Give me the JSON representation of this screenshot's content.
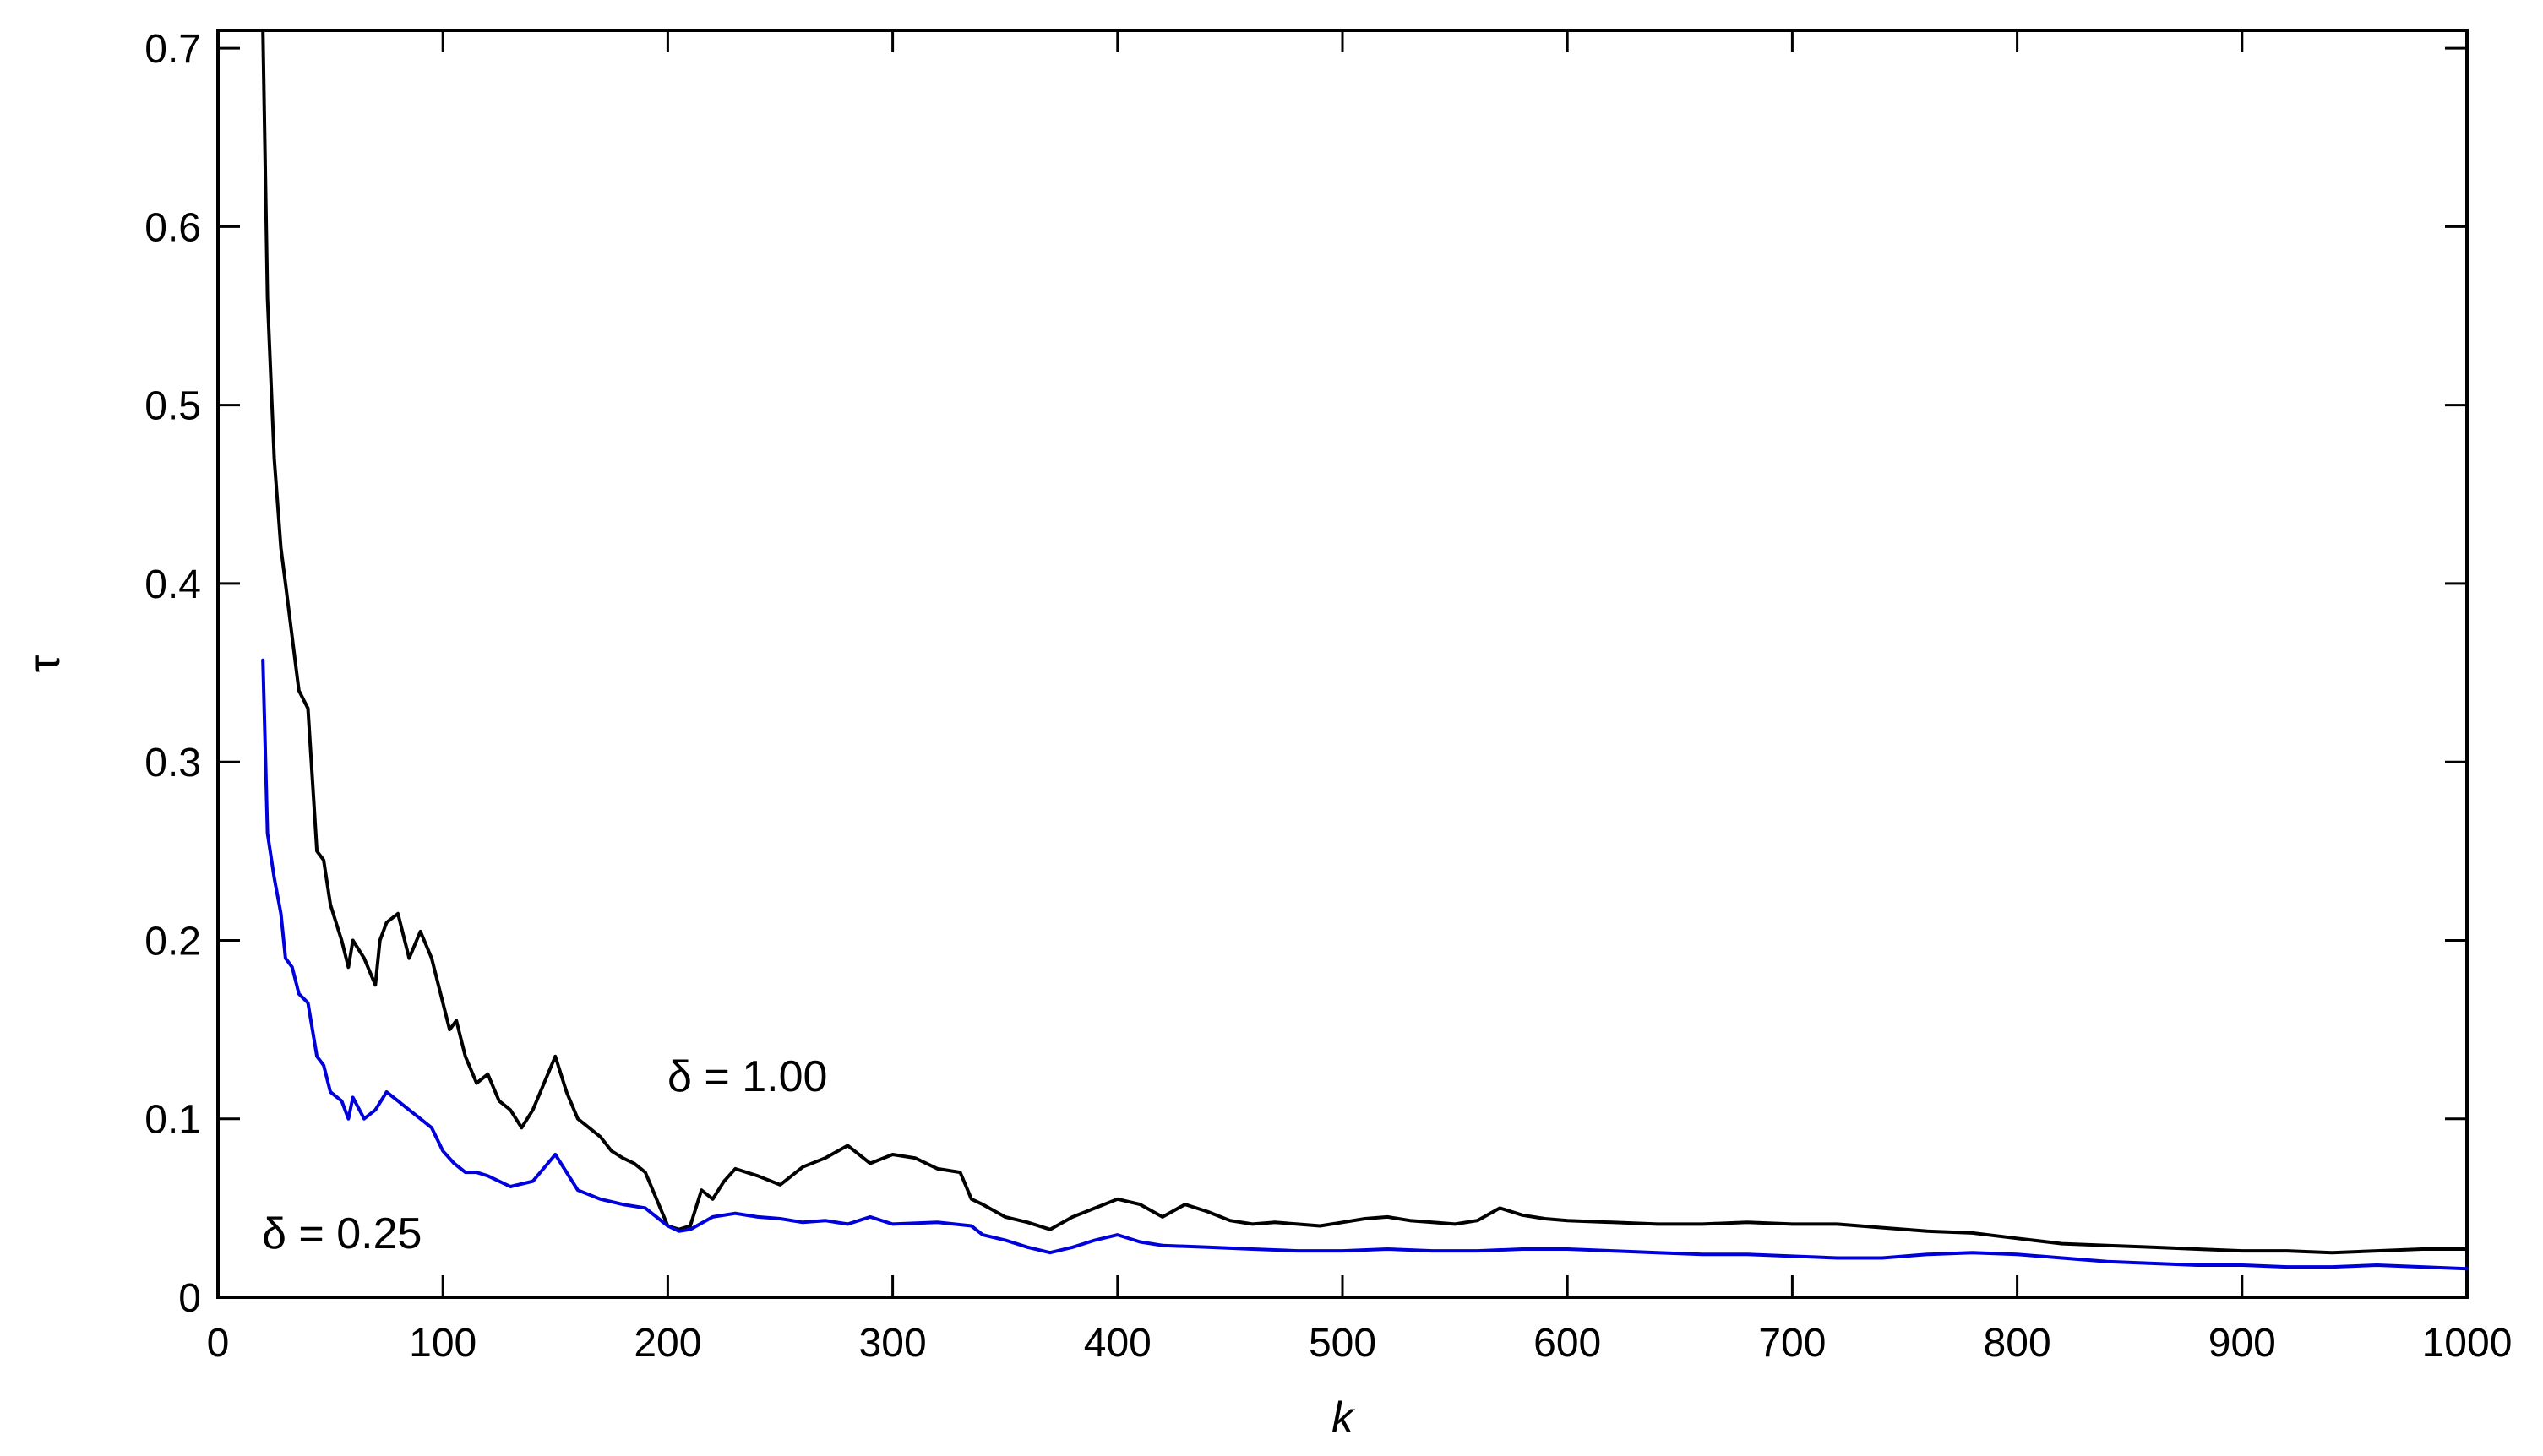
{
  "chart_data": {
    "type": "line",
    "title": "",
    "xlabel": "k",
    "ylabel": "τ",
    "xlim": [
      0,
      1000
    ],
    "ylim": [
      0,
      0.71
    ],
    "grid": false,
    "x_ticks": [
      0,
      100,
      200,
      300,
      400,
      500,
      600,
      700,
      800,
      900,
      1000
    ],
    "x_tick_labels": [
      "0",
      "100",
      "200",
      "300",
      "400",
      "500",
      "600",
      "700",
      "800",
      "900",
      "1000"
    ],
    "y_ticks": [
      0,
      0.1,
      0.2,
      0.3,
      0.4,
      0.5,
      0.6,
      0.7
    ],
    "y_tick_labels": [
      "0",
      "0.1",
      "0.2",
      "0.3",
      "0.4",
      "0.5",
      "0.6",
      "0.7"
    ],
    "annotations": [
      {
        "text": "δ = 1.00",
        "x": 200,
        "y": 0.12
      },
      {
        "text": "δ = 0.25",
        "x": 20,
        "y": 0.031
      }
    ],
    "series": [
      {
        "color": "#000000",
        "x": [
          20,
          22,
          25,
          28,
          30,
          33,
          36,
          40,
          44,
          47,
          50,
          55,
          58,
          60,
          65,
          70,
          72,
          75,
          80,
          85,
          90,
          95,
          100,
          103,
          106,
          110,
          115,
          120,
          125,
          130,
          135,
          140,
          145,
          150,
          155,
          160,
          165,
          170,
          175,
          180,
          185,
          190,
          195,
          200,
          205,
          210,
          215,
          220,
          225,
          230,
          240,
          250,
          260,
          270,
          280,
          290,
          300,
          310,
          320,
          330,
          335,
          340,
          350,
          360,
          370,
          380,
          390,
          400,
          410,
          420,
          430,
          440,
          450,
          460,
          470,
          480,
          490,
          500,
          510,
          520,
          530,
          540,
          550,
          560,
          570,
          580,
          590,
          600,
          620,
          640,
          660,
          680,
          700,
          720,
          740,
          760,
          780,
          800,
          820,
          840,
          860,
          880,
          900,
          920,
          940,
          960,
          980,
          1000
        ],
        "y": [
          0.71,
          0.56,
          0.47,
          0.42,
          0.4,
          0.37,
          0.34,
          0.33,
          0.25,
          0.245,
          0.22,
          0.2,
          0.185,
          0.2,
          0.19,
          0.175,
          0.2,
          0.21,
          0.215,
          0.19,
          0.205,
          0.19,
          0.165,
          0.15,
          0.155,
          0.135,
          0.12,
          0.125,
          0.11,
          0.105,
          0.095,
          0.105,
          0.12,
          0.135,
          0.115,
          0.1,
          0.095,
          0.09,
          0.082,
          0.078,
          0.075,
          0.07,
          0.055,
          0.04,
          0.038,
          0.04,
          0.06,
          0.055,
          0.065,
          0.072,
          0.068,
          0.063,
          0.073,
          0.078,
          0.085,
          0.075,
          0.08,
          0.078,
          0.072,
          0.07,
          0.055,
          0.052,
          0.045,
          0.042,
          0.038,
          0.045,
          0.05,
          0.055,
          0.052,
          0.045,
          0.052,
          0.048,
          0.043,
          0.041,
          0.042,
          0.041,
          0.04,
          0.042,
          0.044,
          0.045,
          0.043,
          0.042,
          0.041,
          0.043,
          0.05,
          0.046,
          0.044,
          0.043,
          0.042,
          0.041,
          0.041,
          0.042,
          0.041,
          0.041,
          0.039,
          0.037,
          0.036,
          0.033,
          0.03,
          0.029,
          0.028,
          0.027,
          0.026,
          0.026,
          0.025,
          0.026,
          0.027,
          0.027
        ]
      },
      {
        "color": "#0000dd",
        "x": [
          20,
          22,
          25,
          28,
          30,
          33,
          36,
          40,
          44,
          47,
          50,
          55,
          58,
          60,
          65,
          70,
          75,
          80,
          85,
          90,
          95,
          100,
          105,
          110,
          115,
          120,
          130,
          140,
          150,
          155,
          160,
          170,
          180,
          190,
          200,
          205,
          210,
          220,
          230,
          240,
          250,
          260,
          270,
          280,
          290,
          300,
          320,
          335,
          340,
          350,
          360,
          370,
          380,
          390,
          400,
          410,
          420,
          440,
          460,
          480,
          500,
          520,
          540,
          560,
          580,
          600,
          620,
          640,
          660,
          680,
          700,
          720,
          740,
          760,
          780,
          800,
          820,
          840,
          860,
          880,
          900,
          920,
          940,
          960,
          980,
          1000
        ],
        "y": [
          0.357,
          0.26,
          0.235,
          0.215,
          0.19,
          0.185,
          0.17,
          0.165,
          0.135,
          0.13,
          0.115,
          0.11,
          0.1,
          0.112,
          0.1,
          0.105,
          0.115,
          0.11,
          0.105,
          0.1,
          0.095,
          0.082,
          0.075,
          0.07,
          0.07,
          0.068,
          0.062,
          0.065,
          0.08,
          0.07,
          0.06,
          0.055,
          0.052,
          0.05,
          0.04,
          0.037,
          0.038,
          0.045,
          0.047,
          0.045,
          0.044,
          0.042,
          0.043,
          0.041,
          0.045,
          0.041,
          0.042,
          0.04,
          0.035,
          0.032,
          0.028,
          0.025,
          0.028,
          0.032,
          0.035,
          0.031,
          0.029,
          0.028,
          0.027,
          0.026,
          0.026,
          0.027,
          0.026,
          0.026,
          0.027,
          0.027,
          0.026,
          0.025,
          0.024,
          0.024,
          0.023,
          0.022,
          0.022,
          0.024,
          0.025,
          0.024,
          0.022,
          0.02,
          0.019,
          0.018,
          0.018,
          0.017,
          0.017,
          0.018,
          0.017,
          0.016
        ]
      }
    ]
  }
}
